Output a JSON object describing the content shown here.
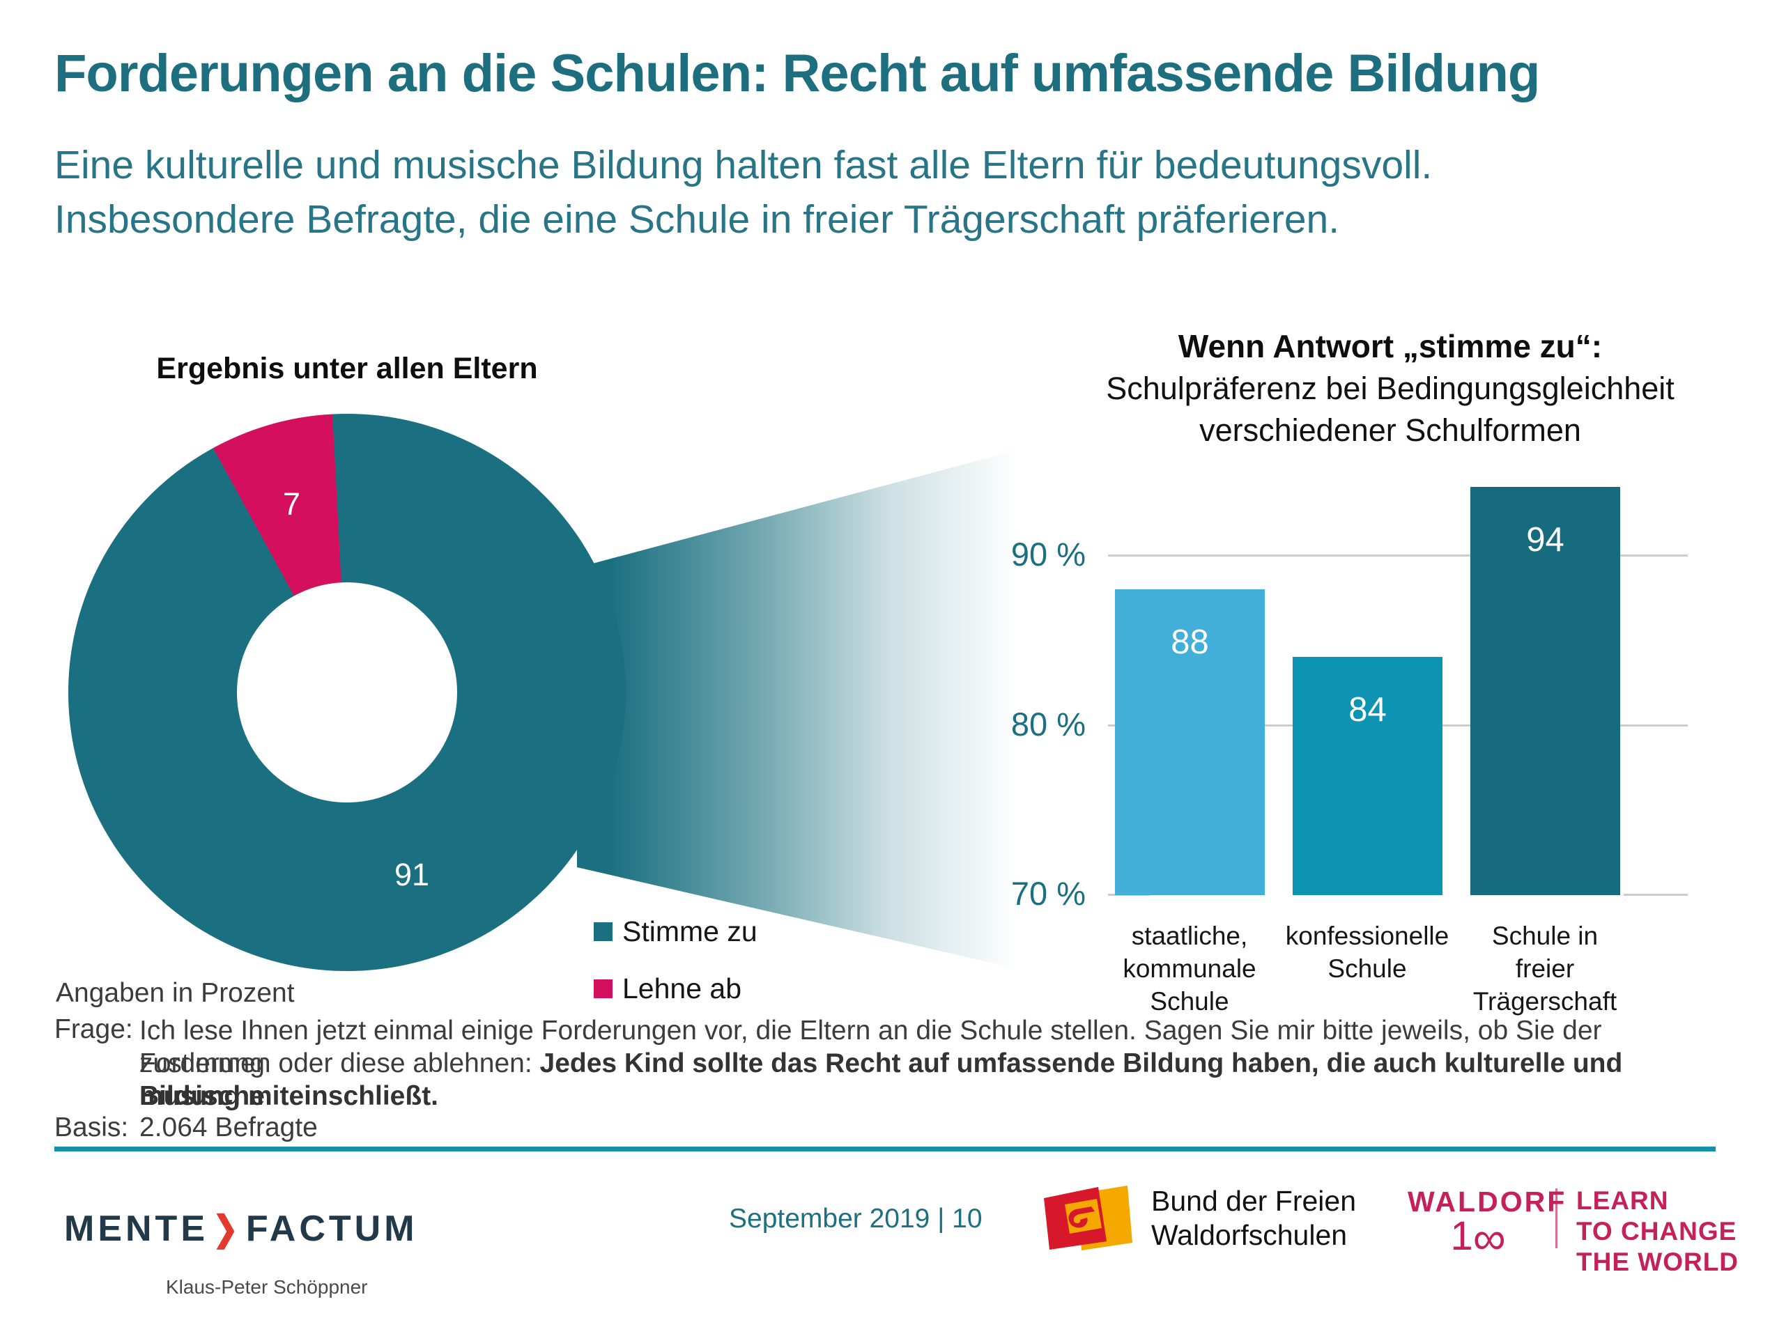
{
  "header": {
    "title": "Forderungen an die Schulen: Recht auf umfassende Bildung",
    "subtitle_line1": "Eine kulturelle und musische Bildung halten fast alle Eltern für bedeutungsvoll.",
    "subtitle_line2": "Insbesondere Befragte, die eine Schule in freier Trägerschaft präferieren."
  },
  "chart_data": [
    {
      "type": "pie",
      "subtype": "donut",
      "title": "Ergebnis unter allen Eltern",
      "units": "Prozent",
      "note": "Angaben in Prozent",
      "series": [
        {
          "name": "Stimme zu",
          "value": 91,
          "color": "#1A7080"
        },
        {
          "name": "Lehne ab",
          "value": 7,
          "color": "#D40F5E"
        }
      ],
      "legend_position": "right-bottom"
    },
    {
      "type": "bar",
      "title_line1": "Wenn Antwort „stimme zu“:",
      "title_line2": "Schulpräferenz bei Bedingungsgleichheit",
      "title_line3": "verschiedener Schulformen",
      "categories": [
        [
          "staatliche,",
          "kommunale",
          "Schule"
        ],
        [
          "konfessionelle",
          "Schule"
        ],
        [
          "Schule in",
          "freier",
          "Trägerschaft"
        ]
      ],
      "values": [
        88,
        84,
        94
      ],
      "colors": [
        "#41AFD7",
        "#0C94B2",
        "#176B7E"
      ],
      "ylabel": "",
      "ylim": [
        70,
        96
      ],
      "y_ticks": [
        {
          "label": "90 %",
          "value": 90
        },
        {
          "label": "80 %",
          "value": 80
        },
        {
          "label": "70 %",
          "value": 70
        }
      ],
      "grid": "horizontal"
    }
  ],
  "frage": {
    "label": "Frage:",
    "line1": "Ich lese Ihnen jetzt einmal einige Forderungen vor, die Eltern an die Schule stellen. Sagen Sie mir bitte jeweils, ob Sie der  Forderung",
    "line2_regular": "zustimmen oder diese ablehnen: ",
    "line2_bold": "Jedes Kind sollte das Recht auf umfassende Bildung haben, die auch kulturelle und musische",
    "line3_bold": "Bildung miteinschließt."
  },
  "basis": {
    "label": "Basis:",
    "value": "2.064 Befragte"
  },
  "footer": {
    "date_page": "September 2019 | 10",
    "mente": {
      "part1": "MENTE",
      "chevron": "❯",
      "part2": "FACTUM",
      "person": "Klaus-Peter Schöppner"
    },
    "bund": {
      "line1": "Bund der Freien",
      "line2": "Waldorfschulen"
    },
    "waldorf": {
      "word": "WALDORF",
      "one": "1",
      "infinity": "∞",
      "learn_line1": "LEARN",
      "learn_line2": "TO CHANGE",
      "learn_line3": "THE WORLD"
    }
  },
  "colors": {
    "accent_teal": "#1A7080",
    "pink": "#D40F5E",
    "rule_teal": "#1791AA",
    "title_teal": "#1D6E7E",
    "waldorf_crimson": "#C52058",
    "mente_navy": "#22394A",
    "mente_red": "#E23B2E",
    "grid_gray": "#CCCCCC"
  }
}
